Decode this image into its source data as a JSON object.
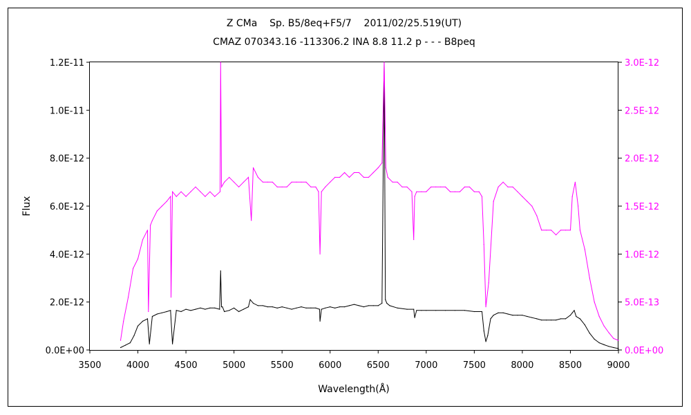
{
  "chart_data": {
    "type": "line",
    "title": "Z CMa    Sp. B5/8eq+F5/7    2011/02/25.519(UT)",
    "subtitle": "CMAZ 070343.16 -113306.2 INA 8.8 11.2 p - - - B8peq",
    "xlabel": "Wavelength(Å)",
    "ylabel": "Flux",
    "xlim": [
      3500,
      9000
    ],
    "ylim_left": [
      0,
      1.2e-11
    ],
    "ylim_right": [
      0,
      3e-12
    ],
    "x_ticks": [
      "3500",
      "4000",
      "4500",
      "5000",
      "5500",
      "6000",
      "6500",
      "7000",
      "7500",
      "8000",
      "8500",
      "9000"
    ],
    "y_ticks_left": [
      "0.0E+00",
      "2.0E-12",
      "4.0E-12",
      "6.0E-12",
      "8.0E-12",
      "1.0E-11",
      "1.2E-11"
    ],
    "y_ticks_right": [
      "0.0E+00",
      "5.0E-13",
      "1.0E-12",
      "1.5E-12",
      "2.0E-12",
      "2.5E-12",
      "3.0E-12"
    ],
    "grid": false,
    "colors": {
      "left_series": "#000000",
      "right_series": "#ff00ff",
      "right_axis": "#ff00ff"
    },
    "series": [
      {
        "axis": "left",
        "x": [
          3820,
          3870,
          3920,
          3960,
          4000,
          4050,
          4100,
          4120,
          4150,
          4200,
          4250,
          4300,
          4340,
          4360,
          4400,
          4450,
          4500,
          4550,
          4600,
          4650,
          4700,
          4750,
          4800,
          4850,
          4861,
          4870,
          4880,
          4900,
          4950,
          5000,
          5050,
          5100,
          5150,
          5169,
          5200,
          5250,
          5300,
          5350,
          5400,
          5450,
          5500,
          5550,
          5600,
          5650,
          5700,
          5750,
          5800,
          5850,
          5890,
          5895,
          5910,
          5950,
          6000,
          6050,
          6100,
          6150,
          6200,
          6250,
          6300,
          6350,
          6400,
          6450,
          6500,
          6540,
          6563,
          6575,
          6590,
          6620,
          6700,
          6800,
          6870,
          6880,
          6900,
          6950,
          7000,
          7100,
          7200,
          7300,
          7400,
          7500,
          7580,
          7600,
          7620,
          7640,
          7670,
          7700,
          7750,
          7800,
          7850,
          7900,
          7950,
          8000,
          8050,
          8100,
          8150,
          8200,
          8250,
          8300,
          8350,
          8400,
          8450,
          8500,
          8520,
          8540,
          8560,
          8600,
          8650,
          8700,
          8750,
          8800,
          8850,
          8900,
          8950,
          9000
        ],
        "y": [
          1e-13,
          2e-13,
          3e-13,
          6e-13,
          1e-12,
          1.2e-12,
          1.3e-12,
          2.5e-13,
          1.4e-12,
          1.5e-12,
          1.55e-12,
          1.6e-12,
          1.65e-12,
          2.5e-13,
          1.65e-12,
          1.6e-12,
          1.7e-12,
          1.65e-12,
          1.7e-12,
          1.75e-12,
          1.7e-12,
          1.75e-12,
          1.75e-12,
          1.7e-12,
          3.3e-12,
          1.8e-12,
          1.8e-12,
          1.6e-12,
          1.65e-12,
          1.75e-12,
          1.6e-12,
          1.7e-12,
          1.8e-12,
          2.1e-12,
          1.95e-12,
          1.85e-12,
          1.85e-12,
          1.8e-12,
          1.8e-12,
          1.75e-12,
          1.8e-12,
          1.75e-12,
          1.7e-12,
          1.75e-12,
          1.8e-12,
          1.75e-12,
          1.75e-12,
          1.75e-12,
          1.7e-12,
          1.2e-12,
          1.7e-12,
          1.75e-12,
          1.8e-12,
          1.75e-12,
          1.8e-12,
          1.8e-12,
          1.85e-12,
          1.9e-12,
          1.85e-12,
          1.8e-12,
          1.85e-12,
          1.85e-12,
          1.85e-12,
          1.95e-12,
          1.2e-11,
          2.1e-12,
          1.95e-12,
          1.85e-12,
          1.75e-12,
          1.7e-12,
          1.7e-12,
          1.35e-12,
          1.65e-12,
          1.65e-12,
          1.65e-12,
          1.65e-12,
          1.65e-12,
          1.65e-12,
          1.65e-12,
          1.6e-12,
          1.6e-12,
          8e-13,
          3.5e-13,
          6e-13,
          1.3e-12,
          1.45e-12,
          1.55e-12,
          1.55e-12,
          1.5e-12,
          1.45e-12,
          1.45e-12,
          1.45e-12,
          1.4e-12,
          1.35e-12,
          1.3e-12,
          1.25e-12,
          1.25e-12,
          1.25e-12,
          1.25e-12,
          1.3e-12,
          1.3e-12,
          1.45e-12,
          1.55e-12,
          1.65e-12,
          1.4e-12,
          1.3e-12,
          1.05e-12,
          7e-13,
          4.5e-13,
          3e-13,
          2.2e-13,
          1.5e-13,
          1e-13,
          6e-14
        ]
      },
      {
        "axis": "right",
        "x": [
          3820,
          3850,
          3900,
          3950,
          4000,
          4050,
          4100,
          4110,
          4130,
          4150,
          4200,
          4250,
          4300,
          4340,
          4345,
          4360,
          4400,
          4450,
          4500,
          4550,
          4600,
          4650,
          4700,
          4750,
          4800,
          4855,
          4861,
          4870,
          4900,
          4950,
          5000,
          5050,
          5100,
          5150,
          5180,
          5200,
          5250,
          5300,
          5350,
          5400,
          5450,
          5500,
          5550,
          5600,
          5650,
          5700,
          5750,
          5800,
          5850,
          5880,
          5895,
          5910,
          5950,
          6000,
          6050,
          6100,
          6150,
          6200,
          6250,
          6300,
          6350,
          6400,
          6450,
          6500,
          6540,
          6563,
          6580,
          6600,
          6650,
          6700,
          6750,
          6800,
          6850,
          6870,
          6880,
          6900,
          6950,
          7000,
          7050,
          7100,
          7150,
          7200,
          7250,
          7300,
          7350,
          7400,
          7450,
          7500,
          7550,
          7580,
          7600,
          7620,
          7650,
          7700,
          7750,
          7800,
          7850,
          7900,
          7950,
          8000,
          8050,
          8100,
          8150,
          8200,
          8250,
          8300,
          8350,
          8400,
          8450,
          8500,
          8520,
          8550,
          8580,
          8600,
          8650,
          8700,
          8750,
          8800,
          8850,
          8900,
          8950,
          9000
        ],
        "y": [
          1e-13,
          3e-13,
          5.5e-13,
          8.5e-13,
          9.5e-13,
          1.15e-12,
          1.25e-12,
          4e-13,
          1.3e-12,
          1.35e-12,
          1.45e-12,
          1.5e-12,
          1.55e-12,
          1.6e-12,
          5.5e-13,
          1.65e-12,
          1.6e-12,
          1.65e-12,
          1.6e-12,
          1.65e-12,
          1.7e-12,
          1.65e-12,
          1.6e-12,
          1.65e-12,
          1.6e-12,
          1.65e-12,
          3e-12,
          1.7e-12,
          1.75e-12,
          1.8e-12,
          1.75e-12,
          1.7e-12,
          1.75e-12,
          1.8e-12,
          1.35e-12,
          1.9e-12,
          1.8e-12,
          1.75e-12,
          1.75e-12,
          1.75e-12,
          1.7e-12,
          1.7e-12,
          1.7e-12,
          1.75e-12,
          1.75e-12,
          1.75e-12,
          1.75e-12,
          1.7e-12,
          1.7e-12,
          1.65e-12,
          1e-12,
          1.65e-12,
          1.7e-12,
          1.75e-12,
          1.8e-12,
          1.8e-12,
          1.85e-12,
          1.8e-12,
          1.85e-12,
          1.85e-12,
          1.8e-12,
          1.8e-12,
          1.85e-12,
          1.9e-12,
          1.95e-12,
          3e-12,
          1.9e-12,
          1.8e-12,
          1.75e-12,
          1.75e-12,
          1.7e-12,
          1.7e-12,
          1.65e-12,
          1.15e-12,
          1.6e-12,
          1.65e-12,
          1.65e-12,
          1.65e-12,
          1.7e-12,
          1.7e-12,
          1.7e-12,
          1.7e-12,
          1.65e-12,
          1.65e-12,
          1.65e-12,
          1.7e-12,
          1.7e-12,
          1.65e-12,
          1.65e-12,
          1.6e-12,
          1.1e-12,
          4.5e-13,
          7e-13,
          1.55e-12,
          1.7e-12,
          1.75e-12,
          1.7e-12,
          1.7e-12,
          1.65e-12,
          1.6e-12,
          1.55e-12,
          1.5e-12,
          1.4e-12,
          1.25e-12,
          1.25e-12,
          1.25e-12,
          1.2e-12,
          1.25e-12,
          1.25e-12,
          1.25e-12,
          1.6e-12,
          1.75e-12,
          1.5e-12,
          1.25e-12,
          1.05e-12,
          7.5e-13,
          5e-13,
          3.5e-13,
          2.5e-13,
          1.8e-13,
          1.2e-13,
          1e-13
        ]
      }
    ]
  }
}
